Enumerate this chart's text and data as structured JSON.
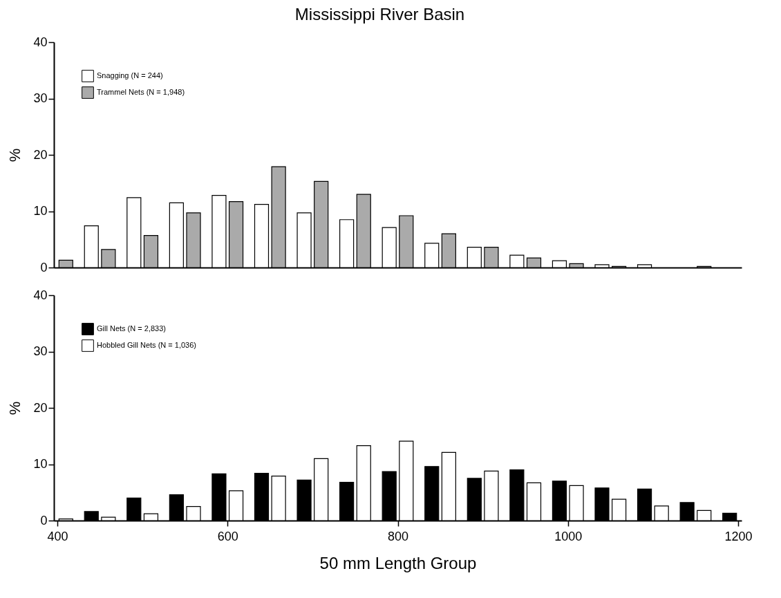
{
  "chart_data": [
    {
      "type": "bar",
      "title": "Mississippi River Basin",
      "ylabel": "%",
      "xlim": [
        400,
        1200
      ],
      "xticks": [
        400,
        600,
        800,
        1000,
        1200
      ],
      "ylim": [
        0,
        40
      ],
      "yticks": [
        0,
        10,
        20,
        30,
        40
      ],
      "tick_labels": "y",
      "legend": "top left",
      "series": [
        {
          "name": "Snagging (N = 244)",
          "color": "#ffffff",
          "x": [
            440,
            490,
            540,
            590,
            640,
            690,
            740,
            790,
            840,
            890,
            940,
            990,
            1040,
            1090
          ],
          "values": [
            7.4,
            12.4,
            11.5,
            12.8,
            11.2,
            9.7,
            8.5,
            7.1,
            4.3,
            3.6,
            2.2,
            1.2,
            0.5,
            0.5
          ]
        },
        {
          "name": "Trammel Nets (N = 1,948)",
          "color": "#aaaaaa",
          "x": [
            410,
            460,
            510,
            560,
            610,
            660,
            710,
            760,
            810,
            860,
            910,
            960,
            1010,
            1060,
            1160
          ],
          "values": [
            1.3,
            3.2,
            5.7,
            9.7,
            11.7,
            17.9,
            15.3,
            13.0,
            9.2,
            6.0,
            3.6,
            1.7,
            0.7,
            0.2,
            0.2
          ]
        }
      ]
    },
    {
      "type": "bar",
      "xlabel": "50 mm Length Group",
      "ylabel": "%",
      "xlim": [
        400,
        1200
      ],
      "xticks": [
        400,
        600,
        800,
        1000,
        1200
      ],
      "ylim": [
        0,
        40
      ],
      "yticks": [
        0,
        10,
        20,
        30,
        40
      ],
      "legend": "top left",
      "series": [
        {
          "name": "Gill Nets (N = 2,833)",
          "color": "#000000",
          "x": [
            440,
            490,
            540,
            590,
            640,
            690,
            740,
            790,
            840,
            890,
            940,
            990,
            1040,
            1090,
            1140,
            1190
          ],
          "values": [
            1.6,
            4.0,
            4.6,
            8.3,
            8.4,
            7.2,
            6.8,
            8.7,
            9.6,
            7.5,
            9.0,
            7.0,
            5.8,
            5.6,
            3.2,
            1.3
          ]
        },
        {
          "name": "Hobbled Gill Nets (N = 1,036)",
          "color": "#ffffff",
          "x": [
            410,
            460,
            510,
            560,
            610,
            660,
            710,
            760,
            810,
            860,
            910,
            960,
            1010,
            1060,
            1110,
            1160
          ],
          "values": [
            0.3,
            0.6,
            1.2,
            2.5,
            5.3,
            7.9,
            11.0,
            13.3,
            14.1,
            12.1,
            8.8,
            6.7,
            6.2,
            3.8,
            2.6,
            1.8
          ]
        }
      ]
    }
  ]
}
